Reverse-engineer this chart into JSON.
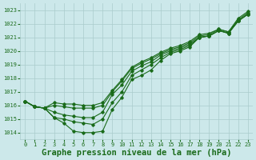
{
  "title": "Graphe pression niveau de la mer (hPa)",
  "background_color": "#cce8ea",
  "grid_color": "#aacccc",
  "line_color": "#1a6b1a",
  "ylim": [
    1013.5,
    1023.5
  ],
  "xlim": [
    -0.5,
    23.5
  ],
  "yticks": [
    1014,
    1015,
    1016,
    1017,
    1018,
    1019,
    1020,
    1021,
    1022,
    1023
  ],
  "xticks": [
    0,
    1,
    2,
    3,
    4,
    5,
    6,
    7,
    8,
    9,
    10,
    11,
    12,
    13,
    14,
    15,
    16,
    17,
    18,
    19,
    20,
    21,
    22,
    23
  ],
  "series": [
    [
      1016.3,
      1015.9,
      1015.8,
      1015.1,
      1014.7,
      1014.1,
      1014.0,
      1014.0,
      1014.1,
      1015.7,
      1016.6,
      1017.9,
      1018.2,
      1018.6,
      1019.3,
      1019.8,
      1020.0,
      1020.3,
      1021.0,
      1021.1,
      1021.5,
      1021.3,
      1022.2,
      1022.7
    ],
    [
      1016.3,
      1015.9,
      1015.8,
      1015.1,
      1015.0,
      1014.8,
      1014.7,
      1014.6,
      1015.0,
      1016.2,
      1017.0,
      1018.2,
      1018.6,
      1019.0,
      1019.5,
      1019.9,
      1020.1,
      1020.4,
      1021.0,
      1021.1,
      1021.5,
      1021.3,
      1022.2,
      1022.7
    ],
    [
      1016.3,
      1015.9,
      1015.8,
      1015.5,
      1015.3,
      1015.2,
      1015.1,
      1015.1,
      1015.5,
      1016.8,
      1017.5,
      1018.5,
      1018.9,
      1019.2,
      1019.7,
      1020.0,
      1020.2,
      1020.5,
      1021.0,
      1021.1,
      1021.5,
      1021.3,
      1022.2,
      1022.7
    ],
    [
      1016.3,
      1015.9,
      1015.8,
      1016.0,
      1015.9,
      1015.8,
      1015.8,
      1015.8,
      1016.0,
      1017.0,
      1017.8,
      1018.7,
      1019.1,
      1019.4,
      1019.8,
      1020.1,
      1020.3,
      1020.6,
      1021.1,
      1021.2,
      1021.6,
      1021.4,
      1022.3,
      1022.8
    ],
    [
      1016.3,
      1015.9,
      1015.8,
      1016.2,
      1016.1,
      1016.1,
      1016.0,
      1016.0,
      1016.2,
      1017.1,
      1017.9,
      1018.8,
      1019.2,
      1019.5,
      1019.9,
      1020.2,
      1020.4,
      1020.7,
      1021.2,
      1021.3,
      1021.6,
      1021.4,
      1022.4,
      1022.9
    ]
  ],
  "marker": "D",
  "markersize": 1.8,
  "linewidth": 0.8,
  "title_fontsize": 7.5,
  "tick_fontsize": 5.0
}
